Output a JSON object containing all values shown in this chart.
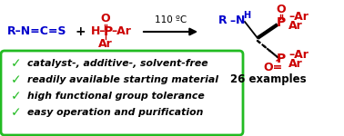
{
  "bg_color": "#ffffff",
  "blue": "#0000cc",
  "red": "#cc0000",
  "black": "#000000",
  "green_box": "#22bb22",
  "green_check": "#22bb22",
  "condition": "110 ºC",
  "bullet_points": [
    "catalyst-, additive-, solvent-free",
    "readily available starting material",
    "high functional group tolerance",
    "easy operation and purification"
  ],
  "examples_text": "26 examples"
}
